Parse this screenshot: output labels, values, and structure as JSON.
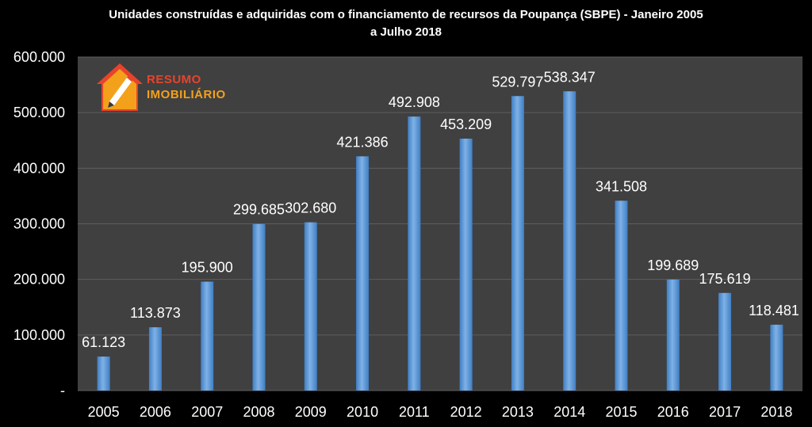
{
  "chart_data": {
    "type": "bar",
    "title_line1": "Unidades construídas e adquiridas com o financiamento de recursos da Poupança (SBPE) - Janeiro 2005",
    "title_line2": "a Julho 2018",
    "categories": [
      "2005",
      "2006",
      "2007",
      "2008",
      "2009",
      "2010",
      "2011",
      "2012",
      "2013",
      "2014",
      "2015",
      "2016",
      "2017",
      "2018"
    ],
    "values": [
      61123,
      113873,
      195900,
      299685,
      302680,
      421386,
      492908,
      453209,
      529797,
      538347,
      341508,
      199689,
      175619,
      118481
    ],
    "value_labels": [
      "61.123",
      "113.873",
      "195.900",
      "299.685",
      "302.680",
      "421.386",
      "492.908",
      "453.209",
      "529.797",
      "538.347",
      "341.508",
      "199.689",
      "175.619",
      "118.481"
    ],
    "y_ticks": [
      0,
      100000,
      200000,
      300000,
      400000,
      500000,
      600000
    ],
    "y_tick_labels": [
      "-",
      "100.000",
      "200.000",
      "300.000",
      "400.000",
      "500.000",
      "600.000"
    ],
    "ylim": [
      0,
      600000
    ],
    "xlabel": "",
    "ylabel": "",
    "grid": true,
    "legend": "none",
    "colors": {
      "background": "#000000",
      "plot_area": "#404040",
      "gridline": "#5e5e5e",
      "bar_light": "#7fb1e6",
      "bar_dark": "#3f7fc4",
      "text": "#ffffff"
    }
  },
  "logo": {
    "line1": "RESUMO",
    "line2": "IMOBILIÁRIO",
    "colors": {
      "house": "#e8432b",
      "accent": "#f3a11b"
    }
  }
}
